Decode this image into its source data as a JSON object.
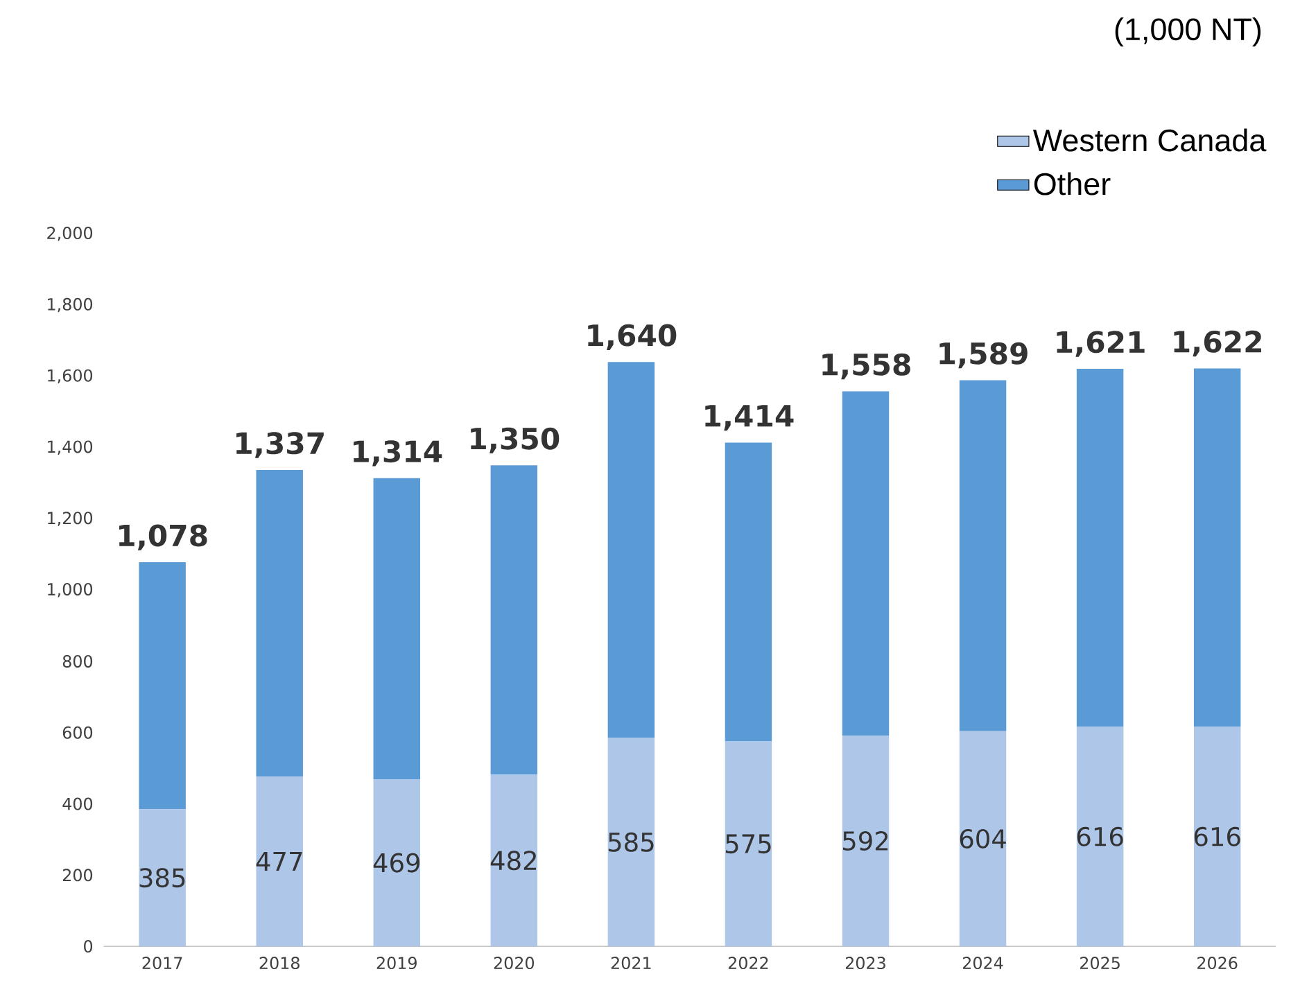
{
  "chart_data": {
    "type": "bar",
    "stacked": true,
    "categories": [
      "2017",
      "2018",
      "2019",
      "2020",
      "2021",
      "2022",
      "2023",
      "2024",
      "2025",
      "2026"
    ],
    "series": [
      {
        "name": "Western Canada",
        "color": "#aec6e8",
        "values": [
          385,
          477,
          469,
          482,
          585,
          575,
          592,
          604,
          616,
          616
        ],
        "value_labels": [
          "385",
          "477",
          "469",
          "482",
          "585",
          "575",
          "592",
          "604",
          "616",
          "616"
        ]
      },
      {
        "name": "Other",
        "color": "#5b9bd5",
        "values": [
          693,
          860,
          845,
          868,
          1055,
          839,
          966,
          985,
          1005,
          1006
        ]
      }
    ],
    "totals": [
      "1,078",
      "1,337",
      "1,314",
      "1,350",
      "1,640",
      "1,414",
      "1,558",
      "1,589",
      "1,621",
      "1,622"
    ],
    "ylim": [
      0,
      2000
    ],
    "yticks": [
      0,
      200,
      400,
      600,
      800,
      {
        "value": 1000,
        "label": "1,000"
      },
      {
        "value": 1200,
        "label": "1,200"
      },
      {
        "value": 1400,
        "label": "1,400"
      },
      {
        "value": 1600,
        "label": "1,600"
      },
      {
        "value": 1800,
        "label": "1,800"
      },
      {
        "value": 2000,
        "label": "2,000"
      }
    ],
    "legend": "top right",
    "grid": false,
    "annotations": [
      "(1,000 NT)"
    ]
  }
}
